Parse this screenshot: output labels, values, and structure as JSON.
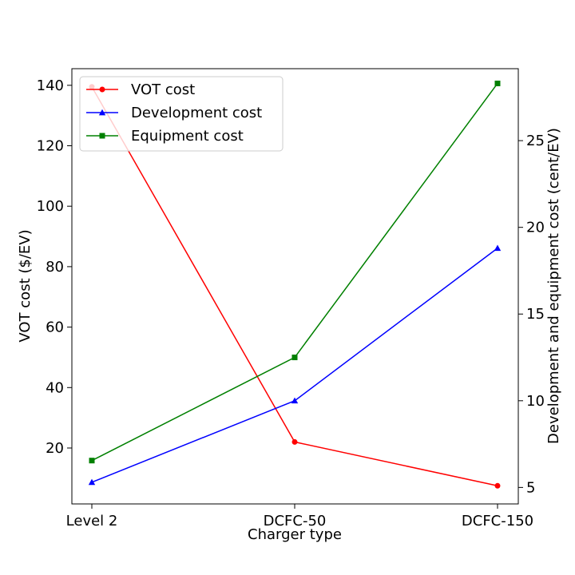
{
  "chart_data": {
    "type": "line",
    "categories": [
      "Level 2",
      "DCFC-50",
      "DCFC-150"
    ],
    "xlabel": "Charger type",
    "ylabel_left": "VOT cost ($/EV)",
    "ylabel_right": "Development and equipment cost (cent/EV)",
    "yticks_left": [
      20,
      40,
      60,
      80,
      100,
      120,
      140
    ],
    "yticks_right": [
      5,
      10,
      15,
      20,
      25
    ],
    "ylim_left": [
      1.5,
      145.5
    ],
    "ylim_right": [
      4.05,
      29.15
    ],
    "grid": false,
    "legend_placement": "top-left",
    "series": [
      {
        "name": "VOT cost",
        "axis": "left",
        "color": "#ff0000",
        "marker": "circle",
        "values": [
          139.5,
          22,
          7.5
        ]
      },
      {
        "name": "Development cost",
        "axis": "right",
        "color": "#0000ff",
        "marker": "triangle",
        "values": [
          5.3,
          10.0,
          18.8
        ]
      },
      {
        "name": "Equipment cost",
        "axis": "right",
        "color": "#008000",
        "marker": "square",
        "values": [
          6.55,
          12.5,
          28.3
        ]
      }
    ]
  }
}
